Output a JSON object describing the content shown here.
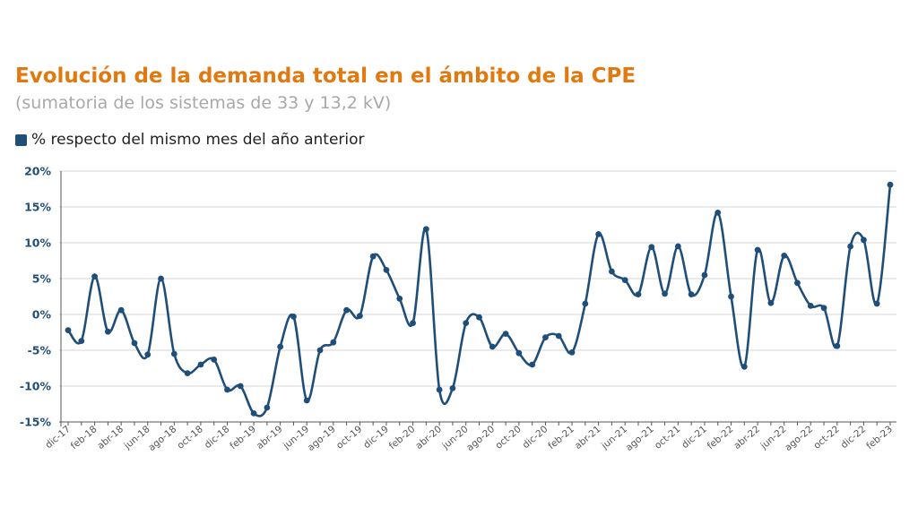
{
  "colors": {
    "title": "#e07a10",
    "subtitle": "#a8a8a8",
    "series": "#1f4e79",
    "grid": "#d4d4d4",
    "axis": "#555555"
  },
  "chart_data": {
    "type": "line",
    "title": "Evolución de la demanda total en el ámbito de la CPE",
    "subtitle": "(sumatoria de los sistemas de 33 y 13,2 kV)",
    "xlabel": "",
    "ylabel": "",
    "ylim": [
      -15,
      20
    ],
    "yticks": [
      "20%",
      "15%",
      "10%",
      "5%",
      "0%",
      "-5%",
      "-10%",
      "-15%"
    ],
    "ytick_values": [
      20,
      15,
      10,
      5,
      0,
      -5,
      -10,
      -15
    ],
    "grid": true,
    "legend_position": "top-left",
    "categories": [
      "dic-17",
      "ene-18",
      "feb-18",
      "mar-18",
      "abr-18",
      "may-18",
      "jun-18",
      "jul-18",
      "ago-18",
      "sep-18",
      "oct-18",
      "nov-18",
      "dic-18",
      "ene-19",
      "feb-19",
      "mar-19",
      "abr-19",
      "may-19",
      "jun-19",
      "jul-19",
      "ago-19",
      "sep-19",
      "oct-19",
      "nov-19",
      "dic-19",
      "ene-20",
      "feb-20",
      "mar-20",
      "abr-20",
      "may-20",
      "jun-20",
      "jul-20",
      "ago-20",
      "sep-20",
      "oct-20",
      "nov-20",
      "dic-20",
      "ene-21",
      "feb-21",
      "mar-21",
      "abr-21",
      "may-21",
      "jun-21",
      "jul-21",
      "ago-21",
      "sep-21",
      "oct-21",
      "nov-21",
      "dic-21",
      "ene-22",
      "feb-22",
      "mar-22",
      "abr-22",
      "may-22",
      "jun-22",
      "jul-22",
      "ago-22",
      "sep-22",
      "oct-22",
      "nov-22",
      "dic-22",
      "ene-23",
      "feb-23"
    ],
    "tick_labels": [
      "dic-17",
      "feb-18",
      "abr-18",
      "jun-18",
      "ago-18",
      "oct-18",
      "dic-18",
      "feb-19",
      "abr-19",
      "jun-19",
      "ago-19",
      "oct-19",
      "dic-19",
      "feb-20",
      "abr-20",
      "jun-20",
      "ago-20",
      "oct-20",
      "dic-20",
      "feb-21",
      "abr-21",
      "jun-21",
      "ago-21",
      "oct-21",
      "dic-21",
      "feb-22",
      "abr-22",
      "jun-22",
      "ago-22",
      "oct-22",
      "dic-22",
      "feb-23"
    ],
    "series": [
      {
        "name": "% respecto del mismo mes del año anterior",
        "values": [
          -2.2,
          -3.7,
          5.3,
          -2.4,
          0.6,
          -4.0,
          -5.6,
          5.0,
          -5.5,
          -8.2,
          -7.0,
          -6.3,
          -10.5,
          -10.0,
          -13.8,
          -13.0,
          -4.5,
          -0.3,
          -12.0,
          -5.0,
          -3.9,
          0.6,
          -0.2,
          8.1,
          6.2,
          2.2,
          -1.2,
          11.9,
          -10.5,
          -10.3,
          -1.2,
          -0.4,
          -4.5,
          -2.7,
          -5.4,
          -7.0,
          -3.2,
          -3.0,
          -5.3,
          1.5,
          11.2,
          6.0,
          4.8,
          2.8,
          9.4,
          2.9,
          9.5,
          2.8,
          5.5,
          14.2,
          2.5,
          -7.3,
          9.0,
          1.6,
          8.2,
          4.4,
          1.2,
          0.9,
          -4.4,
          9.5,
          10.4,
          1.5,
          18.1
        ]
      }
    ]
  }
}
